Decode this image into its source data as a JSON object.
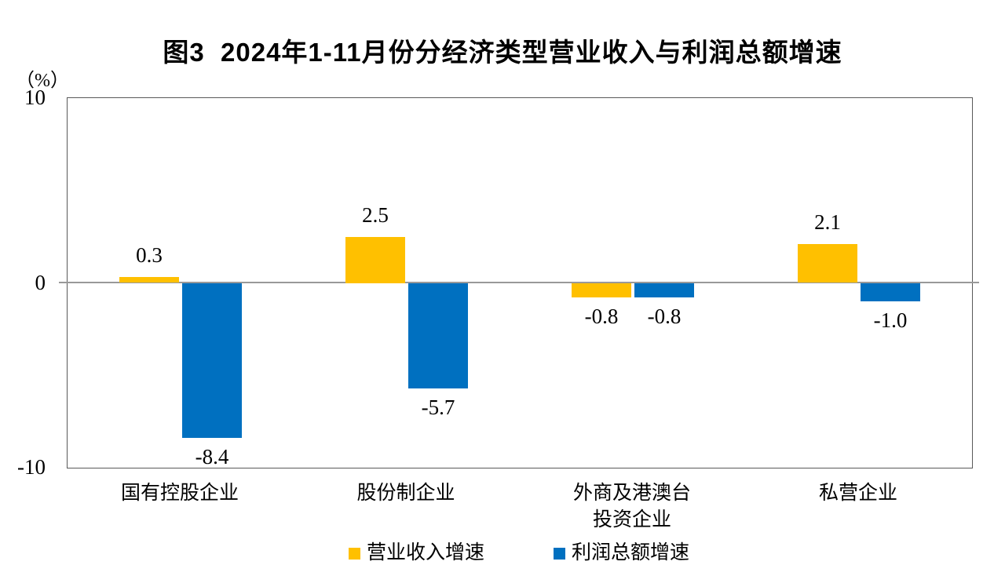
{
  "title": "图3  2024年1-11月份分经济类型营业收入与利润总额增速",
  "y_axis": {
    "unit": "（%）",
    "ticks": [
      "10",
      "0",
      "-10"
    ],
    "min": -10,
    "max": 10
  },
  "colors": {
    "series_revenue": "#FFC000",
    "series_profit": "#0070C0",
    "zero_line": "#999999",
    "plot_border": "#595959",
    "text": "#000000"
  },
  "chart_data": {
    "type": "bar",
    "title": "图3  2024年1-11月份分经济类型营业收入与利润总额增速",
    "categories": [
      "国有控股企业",
      "股份制企业",
      "外商及港澳台投资企业",
      "私营企业"
    ],
    "category_lines": [
      [
        "国有控股企业"
      ],
      [
        "股份制企业"
      ],
      [
        "外商及港澳台",
        "投资企业"
      ],
      [
        "私营企业"
      ]
    ],
    "series": [
      {
        "name": "营业收入增速",
        "color": "#FFC000",
        "values": [
          0.3,
          2.5,
          -0.8,
          2.1
        ],
        "labels": [
          "0.3",
          "2.5",
          "-0.8",
          "2.1"
        ]
      },
      {
        "name": "利润总额增速",
        "color": "#0070C0",
        "values": [
          -8.4,
          -5.7,
          -0.8,
          -1.0
        ],
        "labels": [
          "-8.4",
          "-5.7",
          "-0.8",
          "-1.0"
        ]
      }
    ],
    "ylabel": "（%）",
    "ylim": [
      -10,
      10
    ],
    "grid": false,
    "legend_position": "bottom"
  }
}
